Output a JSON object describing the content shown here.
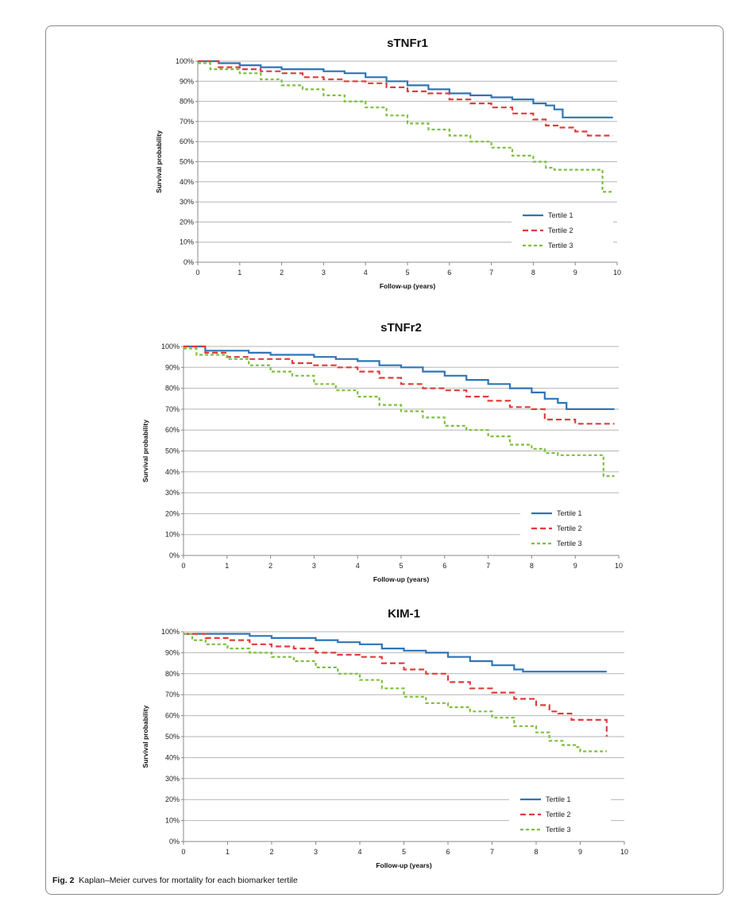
{
  "figure": {
    "caption_label": "Fig. 2",
    "caption_text": "Kaplan–Meier curves for mortality for each biomarker tertile"
  },
  "colors": {
    "tertile_1": "#2e75b6",
    "tertile_2": "#e03c3c",
    "tertile_3": "#7fbf3f",
    "grid": "#b5b5b5"
  },
  "chart_data": [
    {
      "type": "line",
      "title": "sTNFr1",
      "xlabel": "Follow-up (years)",
      "ylabel": "Survival probability",
      "xlim": [
        0,
        10
      ],
      "ylim": [
        0,
        100
      ],
      "x_ticks": [
        "0",
        "1",
        "2",
        "3",
        "4",
        "5",
        "6",
        "7",
        "8",
        "9",
        "10"
      ],
      "y_ticks": [
        "0%",
        "10%",
        "20%",
        "30%",
        "40%",
        "50%",
        "60%",
        "70%",
        "80%",
        "90%",
        "100%"
      ],
      "grid": true,
      "legend_position": "bottom-right",
      "step": true,
      "series": [
        {
          "name": "Tertile 1",
          "x": [
            0,
            0.5,
            1,
            1.5,
            2,
            2.5,
            3,
            3.5,
            4,
            4.5,
            5,
            5.5,
            6,
            6.5,
            7,
            7.5,
            8,
            8.3,
            8.5,
            8.7,
            9,
            9.5,
            9.9
          ],
          "y": [
            100,
            99,
            98,
            97,
            96,
            96,
            95,
            94,
            92,
            90,
            88,
            86,
            84,
            83,
            82,
            81,
            79,
            78,
            76,
            72,
            72,
            72,
            72
          ]
        },
        {
          "name": "Tertile 2",
          "x": [
            0,
            0.5,
            1,
            1.5,
            2,
            2.5,
            3,
            3.5,
            4,
            4.5,
            5,
            5.5,
            6,
            6.5,
            7,
            7.5,
            8,
            8.3,
            8.6,
            9,
            9.3,
            9.9
          ],
          "y": [
            100,
            97,
            96,
            95,
            94,
            92,
            91,
            90,
            89,
            87,
            85,
            84,
            81,
            79,
            77,
            74,
            71,
            68,
            67,
            65,
            63,
            63
          ]
        },
        {
          "name": "Tertile 3",
          "x": [
            0,
            0.3,
            1,
            1.5,
            2,
            2.5,
            3,
            3.5,
            4,
            4.5,
            5,
            5.5,
            6,
            6.5,
            7,
            7.5,
            8,
            8.3,
            8.5,
            9,
            9.6,
            9.65,
            9.9
          ],
          "y": [
            99,
            96,
            94,
            91,
            88,
            86,
            83,
            80,
            77,
            73,
            69,
            66,
            63,
            60,
            57,
            53,
            50,
            47,
            46,
            46,
            46,
            35,
            35
          ]
        }
      ]
    },
    {
      "type": "line",
      "title": "sTNFr2",
      "xlabel": "Follow-up (years)",
      "ylabel": "Survival probability",
      "xlim": [
        0,
        10
      ],
      "ylim": [
        0,
        100
      ],
      "x_ticks": [
        "0",
        "1",
        "2",
        "3",
        "4",
        "5",
        "6",
        "7",
        "8",
        "9",
        "10"
      ],
      "y_ticks": [
        "0%",
        "10%",
        "20%",
        "30%",
        "40%",
        "50%",
        "60%",
        "70%",
        "80%",
        "90%",
        "100%"
      ],
      "grid": true,
      "legend_position": "bottom-right",
      "step": true,
      "series": [
        {
          "name": "Tertile 1",
          "x": [
            0,
            0.5,
            1,
            1.5,
            2,
            2.5,
            3,
            3.5,
            4,
            4.5,
            5,
            5.5,
            6,
            6.5,
            7,
            7.5,
            8,
            8.3,
            8.6,
            8.8,
            9,
            9.9
          ],
          "y": [
            100,
            98,
            98,
            97,
            96,
            96,
            95,
            94,
            93,
            91,
            90,
            88,
            86,
            84,
            82,
            80,
            78,
            75,
            73,
            70,
            70,
            70
          ]
        },
        {
          "name": "Tertile 2",
          "x": [
            0,
            0.5,
            1,
            1.5,
            2,
            2.5,
            3,
            3.5,
            4,
            4.5,
            5,
            5.5,
            6,
            6.5,
            7,
            7.5,
            8,
            8.3,
            8.6,
            9,
            9.3,
            9.9
          ],
          "y": [
            100,
            97,
            95,
            94,
            94,
            92,
            91,
            90,
            88,
            85,
            82,
            80,
            79,
            76,
            74,
            71,
            70,
            65,
            65,
            63,
            63,
            63
          ]
        },
        {
          "name": "Tertile 3",
          "x": [
            0,
            0.3,
            1,
            1.5,
            2,
            2.5,
            3,
            3.5,
            4,
            4.5,
            5,
            5.5,
            6,
            6.5,
            7,
            7.5,
            8,
            8.3,
            8.6,
            9,
            9.6,
            9.65,
            9.9
          ],
          "y": [
            99,
            96,
            94,
            91,
            88,
            86,
            82,
            79,
            76,
            72,
            69,
            66,
            62,
            60,
            57,
            53,
            51,
            49,
            48,
            48,
            48,
            38,
            38
          ]
        }
      ]
    },
    {
      "type": "line",
      "title": "KIM-1",
      "xlabel": "Follow-up (years)",
      "ylabel": "Survival probability",
      "xlim": [
        0,
        10
      ],
      "ylim": [
        0,
        100
      ],
      "x_ticks": [
        "0",
        "1",
        "2",
        "3",
        "4",
        "5",
        "6",
        "7",
        "8",
        "9",
        "10"
      ],
      "y_ticks": [
        "0%",
        "10%",
        "20%",
        "30%",
        "40%",
        "50%",
        "60%",
        "70%",
        "80%",
        "90%",
        "100%"
      ],
      "grid": true,
      "legend_position": "bottom-right",
      "step": true,
      "series": [
        {
          "name": "Tertile 1",
          "x": [
            0,
            0.5,
            1,
            1.5,
            2,
            2.5,
            3,
            3.5,
            4,
            4.5,
            5,
            5.5,
            6,
            6.5,
            7,
            7.5,
            7.7,
            8,
            9,
            9.6
          ],
          "y": [
            99,
            99,
            99,
            98,
            97,
            97,
            96,
            95,
            94,
            92,
            91,
            90,
            88,
            86,
            84,
            82,
            81,
            81,
            81,
            81
          ]
        },
        {
          "name": "Tertile 2",
          "x": [
            0,
            0.5,
            1,
            1.5,
            2,
            2.5,
            3,
            3.5,
            4,
            4.5,
            5,
            5.5,
            6,
            6.5,
            7,
            7.5,
            8,
            8.3,
            8.5,
            8.8,
            9,
            9.55,
            9.6
          ],
          "y": [
            99,
            97,
            96,
            94,
            93,
            92,
            90,
            89,
            88,
            85,
            82,
            80,
            76,
            73,
            71,
            68,
            65,
            62,
            61,
            58,
            58,
            58,
            50
          ]
        },
        {
          "name": "Tertile 3",
          "x": [
            0,
            0.2,
            0.5,
            1,
            1.5,
            2,
            2.5,
            3,
            3.5,
            4,
            4.5,
            5,
            5.5,
            6,
            6.5,
            7,
            7.5,
            8,
            8.3,
            8.6,
            8.9,
            9,
            9.6
          ],
          "y": [
            99,
            96,
            94,
            92,
            90,
            88,
            86,
            83,
            80,
            77,
            73,
            69,
            66,
            64,
            62,
            59,
            55,
            52,
            48,
            46,
            45,
            43,
            43
          ]
        }
      ]
    }
  ]
}
